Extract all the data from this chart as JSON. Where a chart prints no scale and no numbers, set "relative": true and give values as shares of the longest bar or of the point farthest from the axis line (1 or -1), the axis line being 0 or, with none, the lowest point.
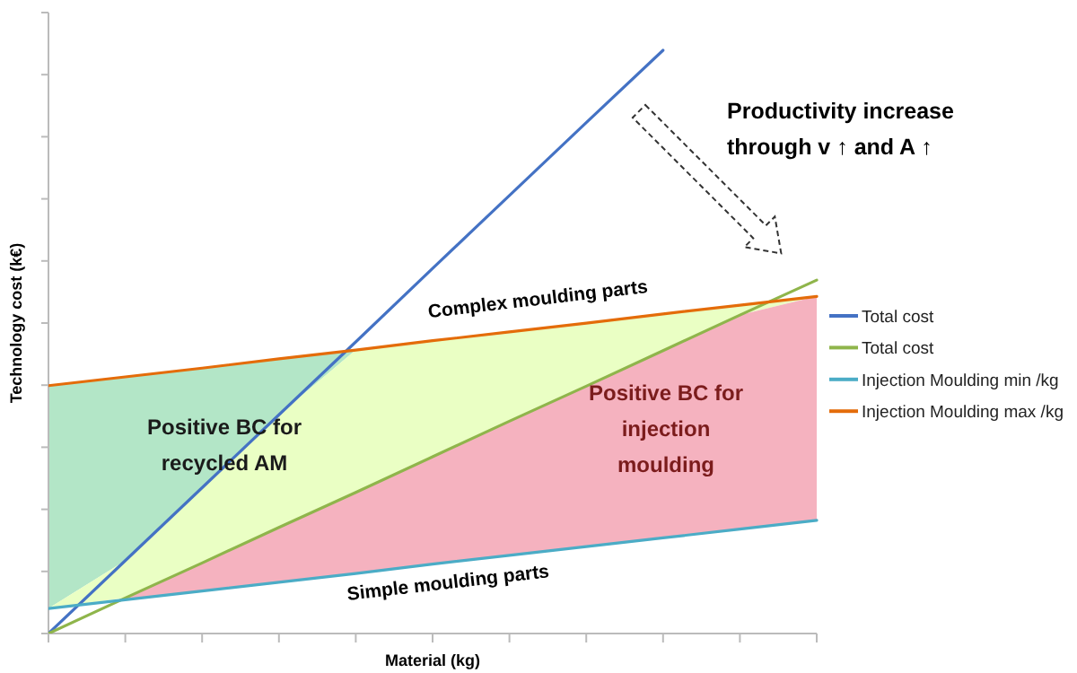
{
  "chart_data": {
    "type": "line",
    "relative": true,
    "xlabel": "Material (kg)",
    "ylabel": "Technology cost (k€)",
    "categories": [
      null,
      null,
      null,
      null,
      null,
      null,
      null,
      null,
      null,
      null,
      null
    ],
    "series": [
      {
        "name": "Total cost",
        "color": "#4472c4",
        "values": [
          0,
          0.125,
          0.25,
          0.375,
          0.5,
          0.626,
          0.751,
          0.876,
          1.0,
          null,
          null
        ],
        "lower": [
          0.043,
          0.125,
          0.25,
          0.375,
          0.486,
          null,
          null,
          null,
          null,
          null,
          null
        ],
        "upper": [
          0.425,
          0.44,
          0.455,
          0.471,
          0.486,
          null,
          null,
          null,
          null,
          null,
          null
        ]
      },
      {
        "name": "Total cost",
        "color": "#8fb54b",
        "values": [
          0,
          0.061,
          0.121,
          0.182,
          0.242,
          0.303,
          0.364,
          0.424,
          0.485,
          0.546,
          0.606
        ],
        "lower": [
          0.043,
          0.061,
          0.121,
          0.182,
          0.242,
          0.303,
          0.364,
          0.424,
          0.485,
          0.546,
          0.578
        ],
        "upper": [
          0.043,
          0.125,
          0.25,
          0.375,
          0.486,
          0.502,
          0.517,
          0.532,
          0.548,
          0.563,
          0.578
        ]
      },
      {
        "name": "Injection Moulding min /kg",
        "color": "#4bacc6",
        "values": [
          0.043,
          0.058,
          0.073,
          0.088,
          0.103,
          0.119,
          0.134,
          0.149,
          0.164,
          0.179,
          0.194
        ],
        "lower": [
          null,
          0.058,
          0.073,
          0.088,
          0.103,
          0.119,
          0.134,
          0.149,
          0.164,
          0.179,
          0.194
        ],
        "upper": [
          null,
          0.061,
          0.121,
          0.182,
          0.242,
          0.303,
          0.364,
          0.424,
          0.485,
          0.546,
          0.578
        ]
      },
      {
        "name": "Injection Moulding max /kg",
        "color": "#e46c0a",
        "values": [
          0.425,
          0.44,
          0.455,
          0.471,
          0.486,
          0.502,
          0.517,
          0.532,
          0.548,
          0.563,
          0.578
        ]
      }
    ],
    "annotations": [
      "Complex moulding parts",
      "Simple moulding parts",
      "Positive BC for recycled AM",
      "Positive BC for injection moulding",
      "Productivity increase through v ↑ and A ↑"
    ],
    "legend": "right"
  }
}
